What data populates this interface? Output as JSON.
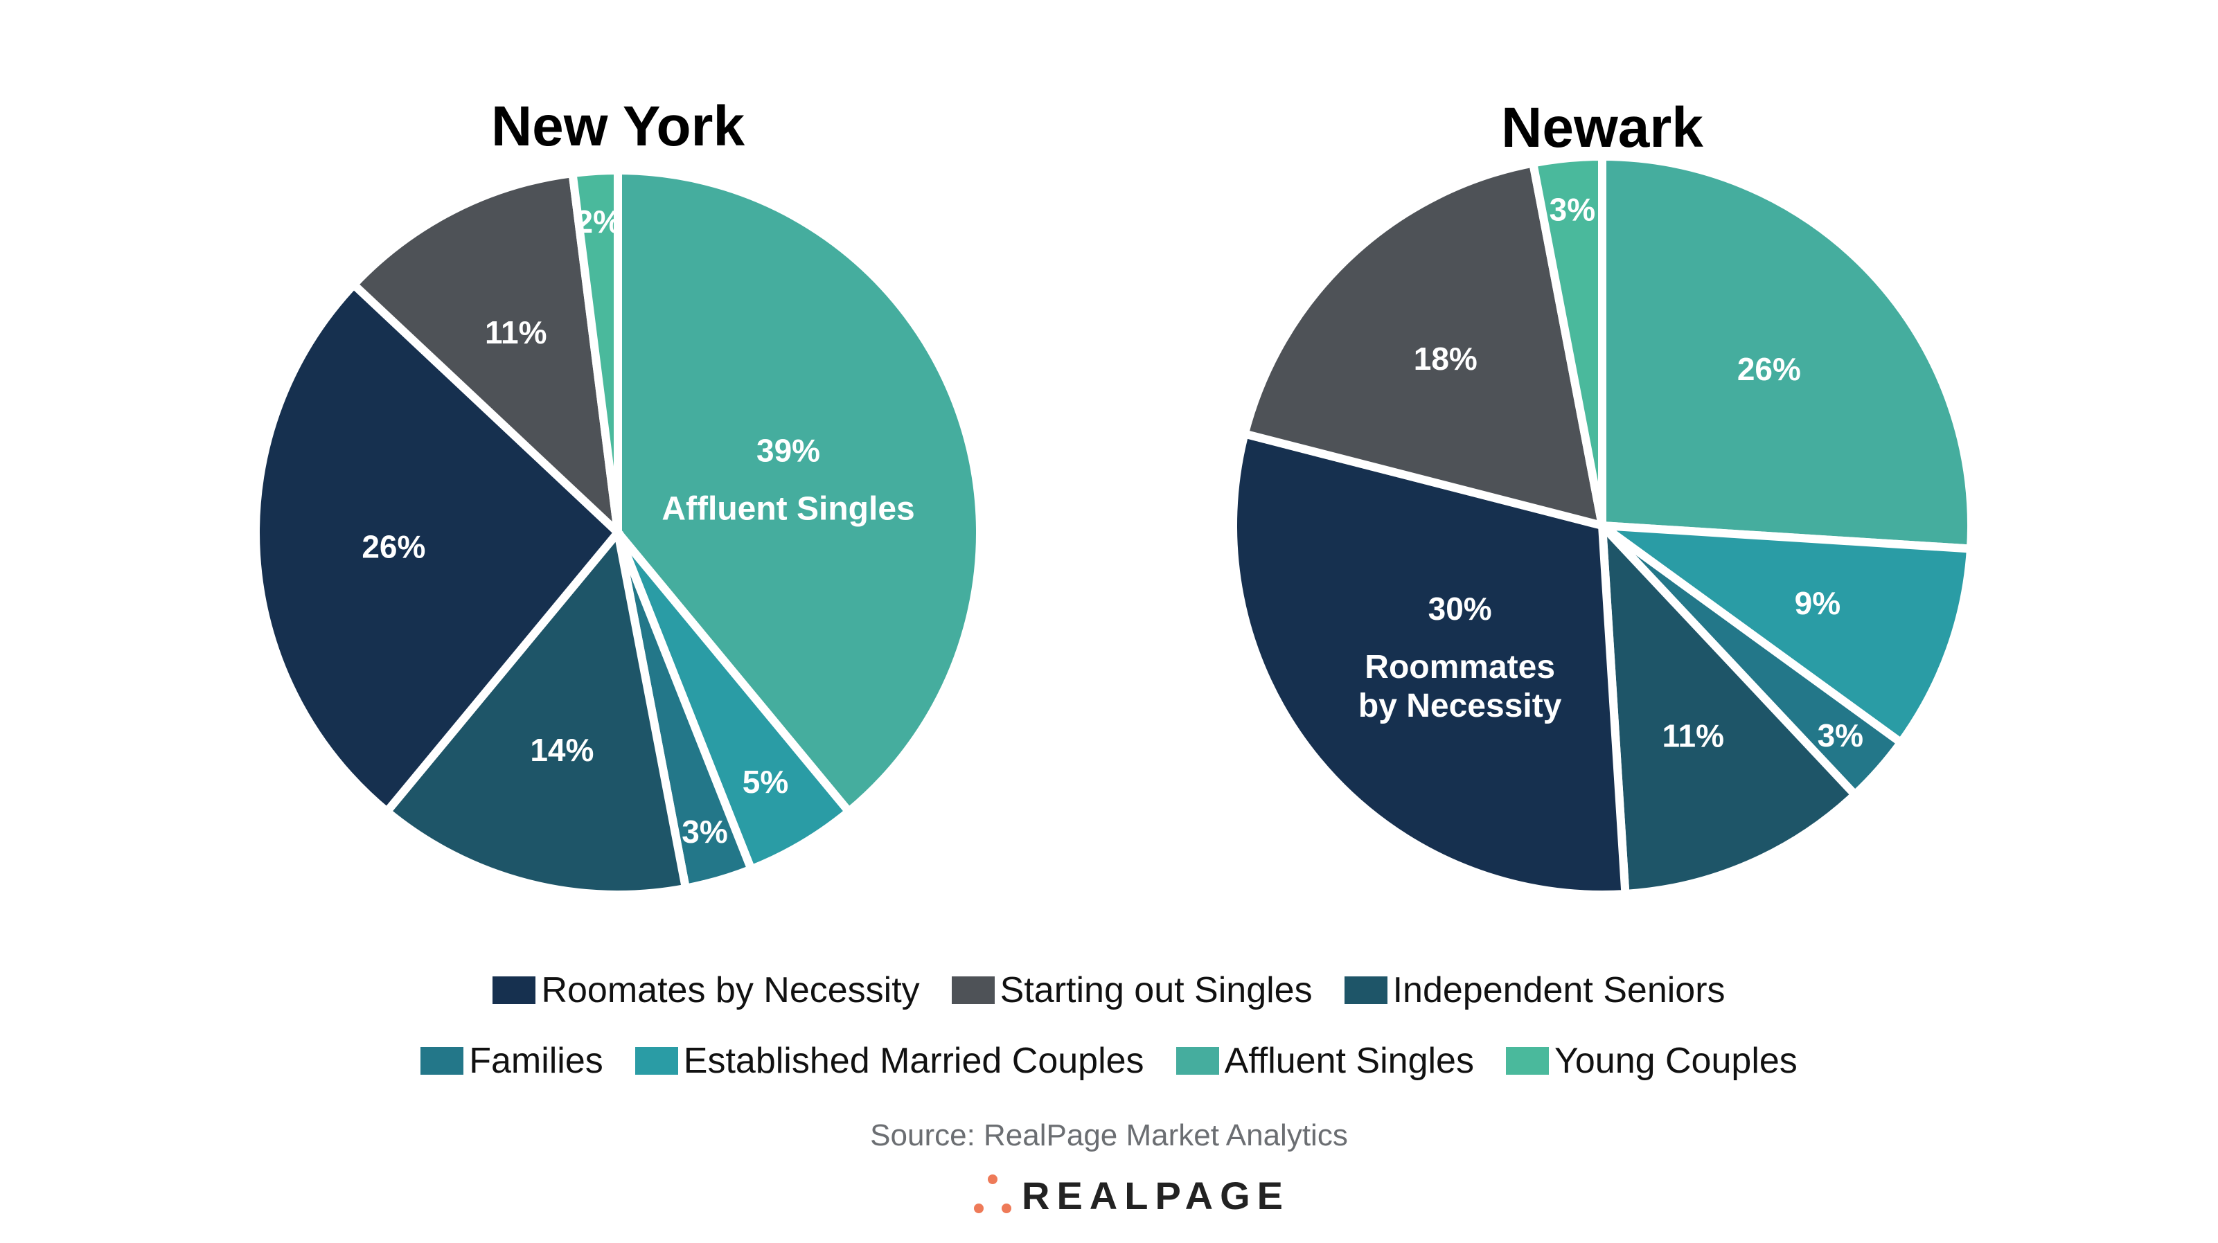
{
  "chart_data": [
    {
      "type": "pie",
      "title": "New York",
      "slices": [
        {
          "category": "Affluent Singles",
          "value": 39,
          "label": "39%",
          "sublabel": "Affluent Singles"
        },
        {
          "category": "Established Married Couples",
          "value": 5,
          "label": "5%"
        },
        {
          "category": "Families",
          "value": 3,
          "label": "3%"
        },
        {
          "category": "Independent Seniors",
          "value": 14,
          "label": "14%"
        },
        {
          "category": "Roomates by Necessity",
          "value": 26,
          "label": "26%"
        },
        {
          "category": "Starting out Singles",
          "value": 11,
          "label": "11%"
        },
        {
          "category": "Young Couples",
          "value": 2,
          "label": "2%"
        }
      ]
    },
    {
      "type": "pie",
      "title": "Newark",
      "slices": [
        {
          "category": "Affluent Singles",
          "value": 26,
          "label": "26%"
        },
        {
          "category": "Established Married Couples",
          "value": 9,
          "label": "9%"
        },
        {
          "category": "Families",
          "value": 3,
          "label": "3%"
        },
        {
          "category": "Independent Seniors",
          "value": 11,
          "label": "11%"
        },
        {
          "category": "Roomates by Necessity",
          "value": 30,
          "label": "30%",
          "sublabel": "Roommates",
          "sublabel2": "by Necessity"
        },
        {
          "category": "Starting out Singles",
          "value": 18,
          "label": "18%"
        },
        {
          "category": "Young Couples",
          "value": 3,
          "label": "3%"
        }
      ]
    }
  ],
  "legend": {
    "placement": "bottom",
    "rows": [
      [
        {
          "label": "Roomates by Necessity",
          "color": "#16304f"
        },
        {
          "label": "Starting out Singles",
          "color": "#4e5257"
        },
        {
          "label": "Independent Seniors",
          "color": "#1e5568"
        }
      ],
      [
        {
          "label": "Families",
          "color": "#237789"
        },
        {
          "label": "Established Married Couples",
          "color": "#2a9ca5"
        },
        {
          "label": "Affluent Singles",
          "color": "#45ad9e"
        },
        {
          "label": "Young Couples",
          "color": "#4ab99c"
        }
      ]
    ]
  },
  "colors": {
    "Roomates by Necessity": "#16304f",
    "Starting out Singles": "#4e5257",
    "Independent Seniors": "#1e5568",
    "Families": "#237789",
    "Established Married Couples": "#2a9ca5",
    "Affluent Singles": "#45ad9e",
    "Young Couples": "#4ab99c"
  },
  "source": "Source: RealPage Market Analytics",
  "logo": {
    "text": "REALPAGE",
    "accent": "#ee7a58"
  }
}
